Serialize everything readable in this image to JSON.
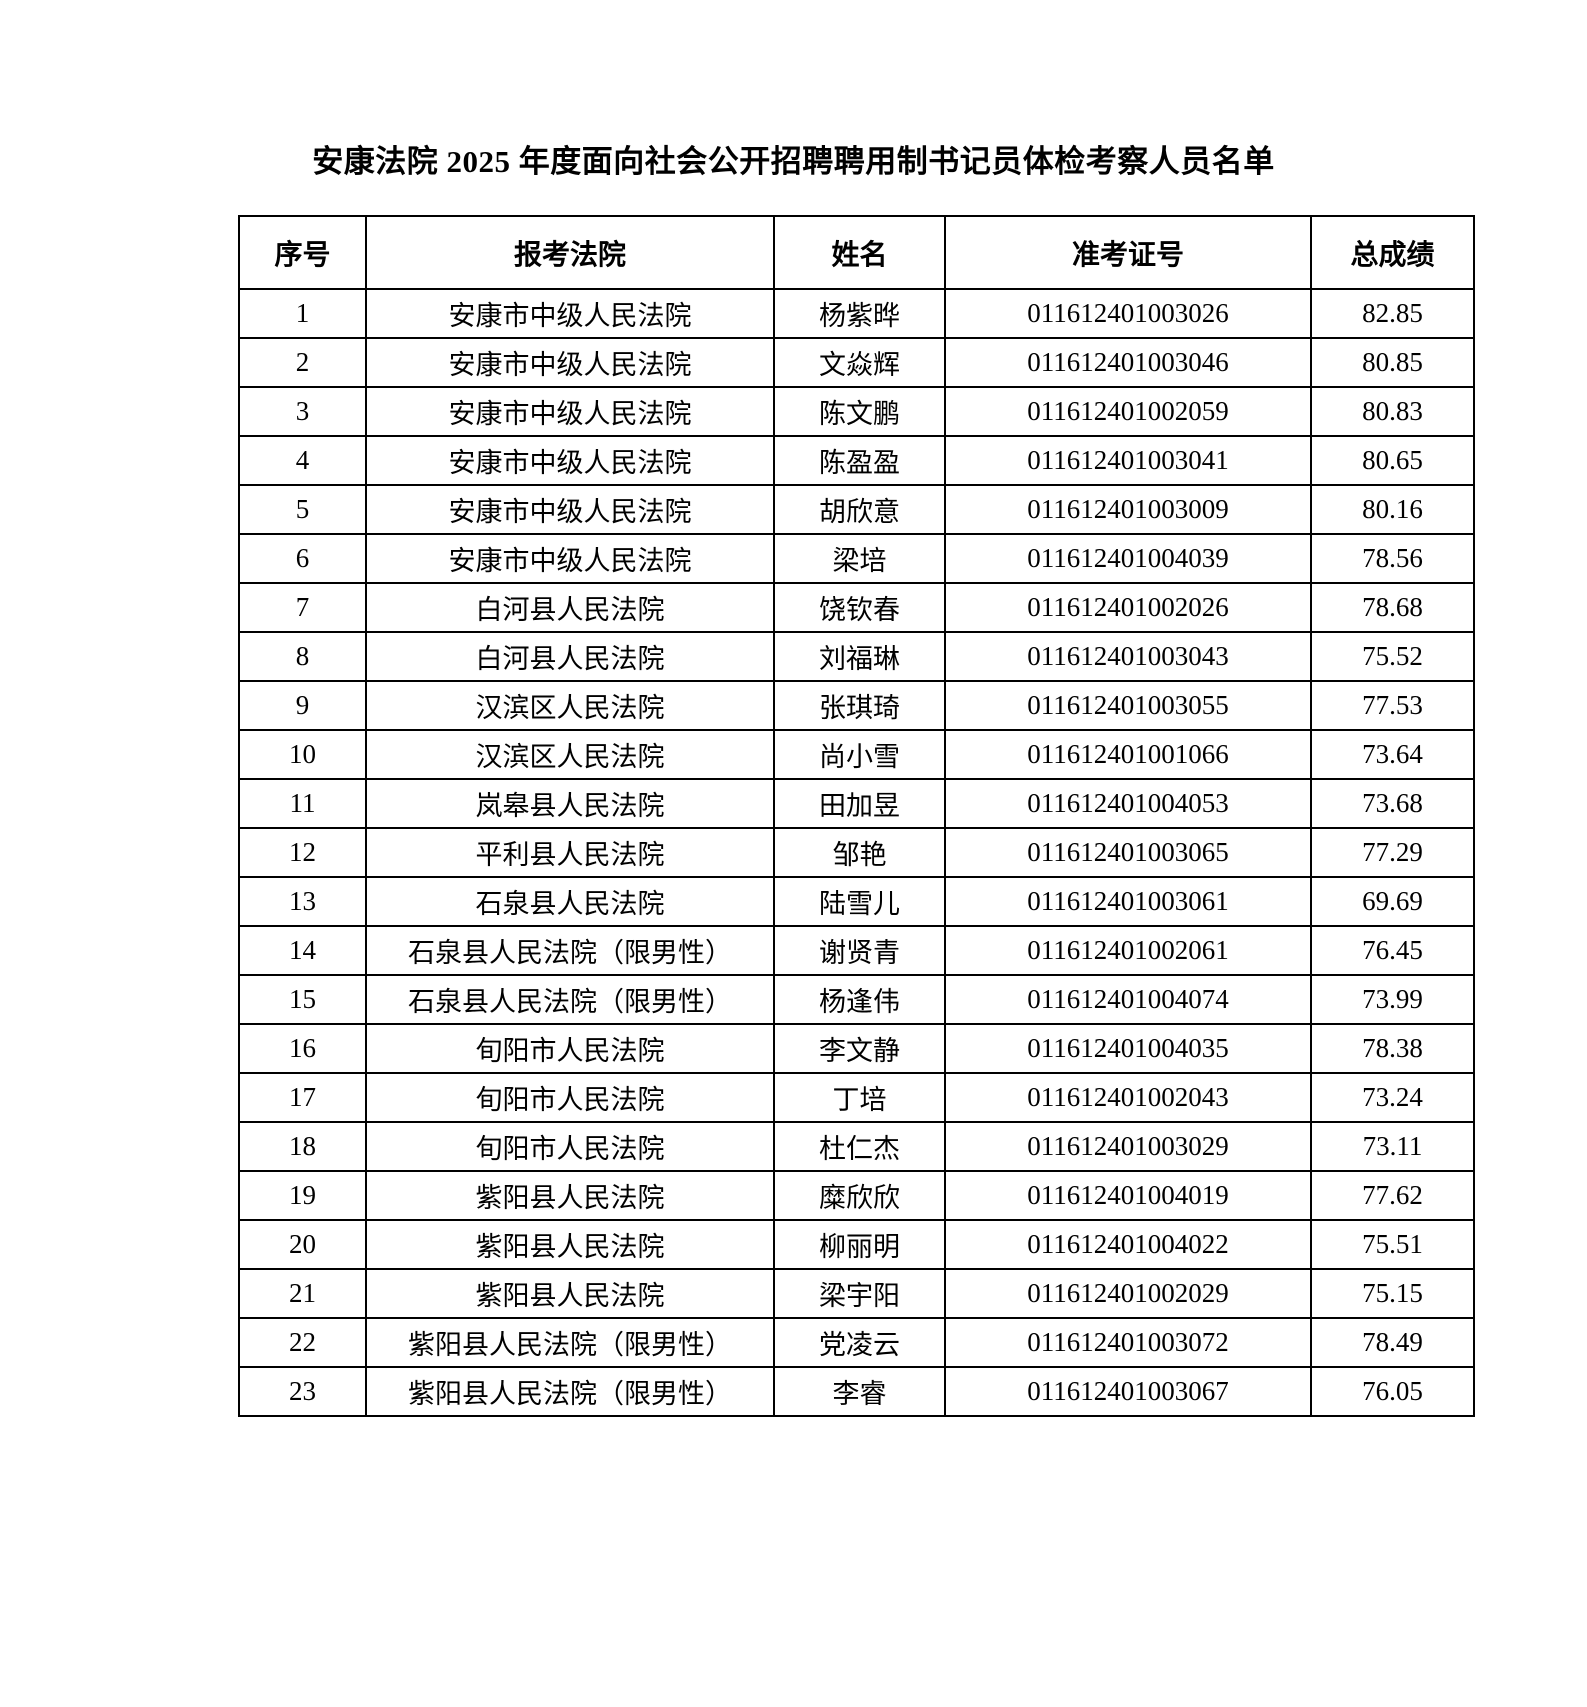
{
  "document": {
    "title": "安康法院 2025 年度面向社会公开招聘聘用制书记员体检考察人员名单"
  },
  "table": {
    "columns": [
      "序号",
      "报考法院",
      "姓名",
      "准考证号",
      "总成绩"
    ],
    "rows": [
      [
        "1",
        "安康市中级人民法院",
        "杨紫晔",
        "011612401003026",
        "82.85"
      ],
      [
        "2",
        "安康市中级人民法院",
        "文焱辉",
        "011612401003046",
        "80.85"
      ],
      [
        "3",
        "安康市中级人民法院",
        "陈文鹏",
        "011612401002059",
        "80.83"
      ],
      [
        "4",
        "安康市中级人民法院",
        "陈盈盈",
        "011612401003041",
        "80.65"
      ],
      [
        "5",
        "安康市中级人民法院",
        "胡欣意",
        "011612401003009",
        "80.16"
      ],
      [
        "6",
        "安康市中级人民法院",
        "梁培",
        "011612401004039",
        "78.56"
      ],
      [
        "7",
        "白河县人民法院",
        "饶钦春",
        "011612401002026",
        "78.68"
      ],
      [
        "8",
        "白河县人民法院",
        "刘福琳",
        "011612401003043",
        "75.52"
      ],
      [
        "9",
        "汉滨区人民法院",
        "张琪琦",
        "011612401003055",
        "77.53"
      ],
      [
        "10",
        "汉滨区人民法院",
        "尚小雪",
        "011612401001066",
        "73.64"
      ],
      [
        "11",
        "岚皋县人民法院",
        "田加昱",
        "011612401004053",
        "73.68"
      ],
      [
        "12",
        "平利县人民法院",
        "邹艳",
        "011612401003065",
        "77.29"
      ],
      [
        "13",
        "石泉县人民法院",
        "陆雪儿",
        "011612401003061",
        "69.69"
      ],
      [
        "14",
        "石泉县人民法院（限男性）",
        "谢贤青",
        "011612401002061",
        "76.45"
      ],
      [
        "15",
        "石泉县人民法院（限男性）",
        "杨逢伟",
        "011612401004074",
        "73.99"
      ],
      [
        "16",
        "旬阳市人民法院",
        "李文静",
        "011612401004035",
        "78.38"
      ],
      [
        "17",
        "旬阳市人民法院",
        "丁培",
        "011612401002043",
        "73.24"
      ],
      [
        "18",
        "旬阳市人民法院",
        "杜仁杰",
        "011612401003029",
        "73.11"
      ],
      [
        "19",
        "紫阳县人民法院",
        "糜欣欣",
        "011612401004019",
        "77.62"
      ],
      [
        "20",
        "紫阳县人民法院",
        "柳丽明",
        "011612401004022",
        "75.51"
      ],
      [
        "21",
        "紫阳县人民法院",
        "梁宇阳",
        "011612401002029",
        "75.15"
      ],
      [
        "22",
        "紫阳县人民法院（限男性）",
        "党凌云",
        "011612401003072",
        "78.49"
      ],
      [
        "23",
        "紫阳县人民法院（限男性）",
        "李睿",
        "011612401003067",
        "76.05"
      ]
    ]
  }
}
